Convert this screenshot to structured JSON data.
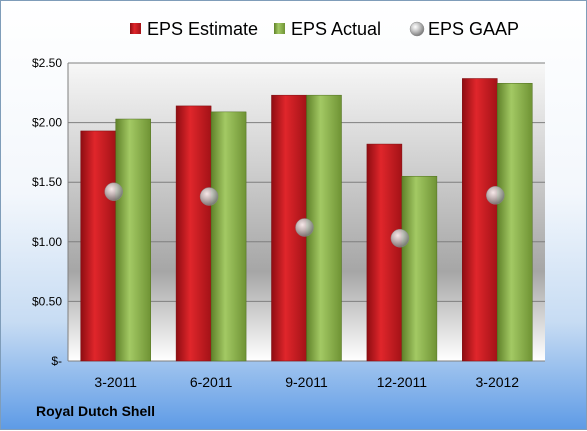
{
  "company": "Royal Dutch Shell",
  "colors": {
    "estimate": "#c0151b",
    "actual": "#8db34c",
    "gaap": "#b9b9b9"
  },
  "chart_data": {
    "type": "bar",
    "categories": [
      "3-2011",
      "6-2011",
      "9-2011",
      "12-2011",
      "3-2012"
    ],
    "series": [
      {
        "name": "EPS Estimate",
        "kind": "bar",
        "values": [
          1.93,
          2.14,
          2.23,
          1.82,
          2.37
        ]
      },
      {
        "name": "EPS Actual",
        "kind": "bar",
        "values": [
          2.03,
          2.09,
          2.23,
          1.55,
          2.33
        ]
      },
      {
        "name": "EPS GAAP",
        "kind": "marker",
        "values": [
          1.42,
          1.38,
          1.12,
          1.03,
          1.39
        ]
      }
    ],
    "y_ticks": [
      {
        "value": 0,
        "label": "$-"
      },
      {
        "value": 0.5,
        "label": "$0.50"
      },
      {
        "value": 1.0,
        "label": "$1.00"
      },
      {
        "value": 1.5,
        "label": "$1.50"
      },
      {
        "value": 2.0,
        "label": "$2.00"
      },
      {
        "value": 2.5,
        "label": "$2.50"
      }
    ],
    "ylim": [
      0,
      2.5
    ],
    "grid": true,
    "legend_position": "top"
  }
}
